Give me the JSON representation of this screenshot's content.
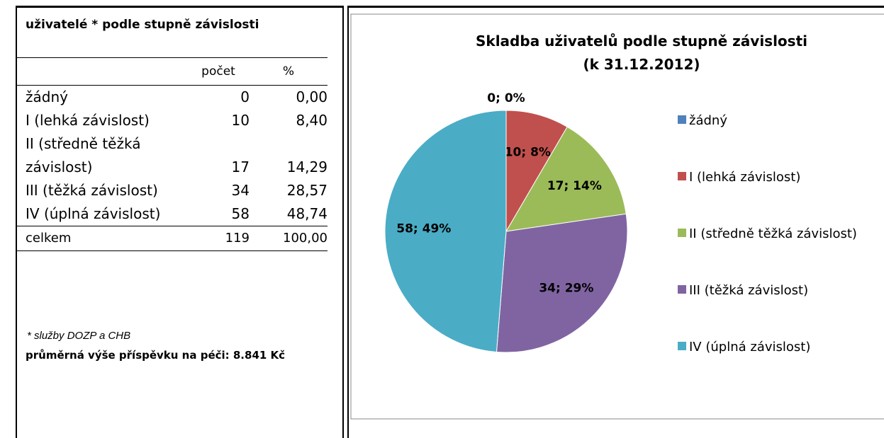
{
  "table": {
    "title": "uživatelé * podle stupně závislosti",
    "header": [
      "počet",
      "%"
    ],
    "rows": [
      [
        "žádný",
        "0",
        "0,00"
      ],
      [
        "I (lehká závislost)",
        "10",
        "8,40"
      ],
      [
        "II (středně těžká závislost)",
        "17",
        "14,29"
      ],
      [
        "III (těžká závislost)",
        "34",
        "28,57"
      ],
      [
        "IV (úplná závislost)",
        "58",
        "48,74"
      ]
    ],
    "total": [
      "celkem",
      "119",
      "100,00"
    ],
    "note": "* služby DOZP a CHB",
    "footer": "průměrná výše příspěvku na péči: 8.841 Kč"
  },
  "chart_data": {
    "type": "pie",
    "title": "Skladba uživatelů podle stupně závislosti",
    "subtitle": "(k 31.12.2012)",
    "categories": [
      "žádný",
      "I (lehká závislost)",
      "II (středně těžká závislost)",
      "III (těžká závislost)",
      "IV (úplná závislost)"
    ],
    "values": [
      0,
      10,
      17,
      34,
      58
    ],
    "value_labels": [
      "0; 0%",
      "10; 8%",
      "17; 14%",
      "34; 29%",
      "58; 49%"
    ],
    "colors": [
      "#4f81bd",
      "#c0504d",
      "#9bbb59",
      "#8064a2",
      "#4bacc6"
    ],
    "legend": "right"
  }
}
